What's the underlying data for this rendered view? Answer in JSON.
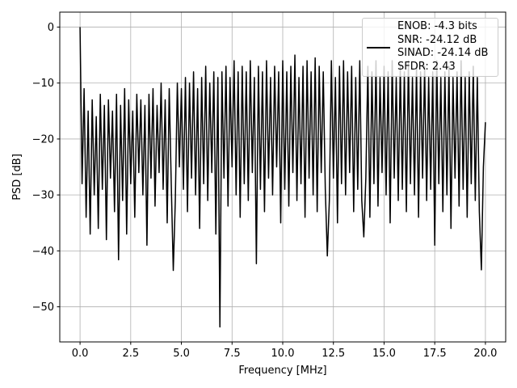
{
  "chart_data": {
    "type": "line",
    "xlabel": "Frequency [MHz]",
    "ylabel": "PSD [dB]",
    "xlim": [
      -1,
      21
    ],
    "ylim": [
      -56.28,
      2.68
    ],
    "xticks": [
      {
        "value": 0,
        "label": "0.0"
      },
      2.5,
      {
        "value": 5,
        "label": "5.0"
      },
      7.5,
      {
        "value": 10,
        "label": "10.0"
      },
      12.5,
      {
        "value": 15,
        "label": "15.0"
      },
      17.5,
      {
        "value": 20,
        "label": "20.0"
      }
    ],
    "yticks": [
      {
        "value": -50,
        "label": "−50"
      },
      {
        "value": -40,
        "label": "−40"
      },
      {
        "value": -30,
        "label": "−30"
      },
      {
        "value": -20,
        "label": "−20"
      },
      {
        "value": -10,
        "label": "−10"
      },
      0
    ],
    "grid": true,
    "legend": "upper right",
    "x": [
      0,
      0.1,
      0.2,
      0.3,
      0.4,
      0.5,
      0.6,
      0.7,
      0.8,
      0.9,
      1,
      1.1,
      1.2,
      1.3,
      1.4,
      1.5,
      1.6,
      1.7,
      1.8,
      1.9,
      2,
      2.1,
      2.2,
      2.3,
      2.4,
      2.5,
      2.6,
      2.7,
      2.8,
      2.9,
      3,
      3.1,
      3.2,
      3.3,
      3.4,
      3.5,
      3.6,
      3.7,
      3.8,
      3.9,
      4,
      4.1,
      4.2,
      4.3,
      4.4,
      4.5,
      4.6,
      4.7,
      4.8,
      4.9,
      5,
      5.1,
      5.2,
      5.3,
      5.4,
      5.5,
      5.6,
      5.7,
      5.8,
      5.9,
      6,
      6.1,
      6.2,
      6.3,
      6.4,
      6.5,
      6.6,
      6.7,
      6.8,
      6.9,
      7,
      7.1,
      7.2,
      7.3,
      7.4,
      7.5,
      7.6,
      7.7,
      7.8,
      7.9,
      8,
      8.1,
      8.2,
      8.3,
      8.4,
      8.5,
      8.6,
      8.7,
      8.8,
      8.9,
      9,
      9.1,
      9.2,
      9.3,
      9.4,
      9.5,
      9.6,
      9.7,
      9.8,
      9.9,
      10,
      10.1,
      10.2,
      10.3,
      10.4,
      10.5,
      10.6,
      10.7,
      10.8,
      10.9,
      11,
      11.1,
      11.2,
      11.3,
      11.4,
      11.5,
      11.6,
      11.7,
      11.8,
      11.9,
      12,
      12.1,
      12.2,
      12.3,
      12.4,
      12.5,
      12.6,
      12.7,
      12.8,
      12.9,
      13,
      13.1,
      13.2,
      13.3,
      13.4,
      13.5,
      13.6,
      13.7,
      13.8,
      13.9,
      14,
      14.1,
      14.2,
      14.3,
      14.4,
      14.5,
      14.6,
      14.7,
      14.8,
      14.9,
      15,
      15.1,
      15.2,
      15.3,
      15.4,
      15.5,
      15.6,
      15.7,
      15.8,
      15.9,
      16,
      16.1,
      16.2,
      16.3,
      16.4,
      16.5,
      16.6,
      16.7,
      16.8,
      16.9,
      17,
      17.1,
      17.2,
      17.3,
      17.4,
      17.5,
      17.6,
      17.7,
      17.8,
      17.9,
      18,
      18.1,
      18.2,
      18.3,
      18.4,
      18.5,
      18.6,
      18.7,
      18.8,
      18.9,
      19,
      19.1,
      19.2,
      19.3,
      19.4,
      19.5,
      19.6,
      19.7,
      19.8,
      19.9,
      20
    ],
    "series": [
      {
        "name": "ENOB: -4.3 bits\nSNR: -24.12 dB\nSINAD: -24.14 dB\nSFDR: 2.43",
        "color": "#000000",
        "values": [
          0,
          -28,
          -11,
          -34,
          -15,
          -37,
          -13,
          -30,
          -16,
          -36,
          -12,
          -29,
          -14,
          -38,
          -13,
          -27,
          -15,
          -33,
          -12,
          -41.6,
          -14,
          -31,
          -11,
          -37,
          -13,
          -28,
          -15,
          -34,
          -12,
          -26,
          -13,
          -30,
          -14,
          -39,
          -12,
          -27,
          -11,
          -32,
          -14,
          -26,
          -10,
          -29,
          -13,
          -35,
          -11,
          -28,
          -43.5,
          -31,
          -10,
          -25,
          -11,
          -29,
          -9,
          -33,
          -10,
          -27,
          -8,
          -30,
          -11,
          -36,
          -9,
          -28,
          -7,
          -31,
          -10,
          -26,
          -8,
          -37,
          -9,
          -53.6,
          -8,
          -27,
          -7,
          -32,
          -9,
          -25,
          -6,
          -30,
          -8,
          -34,
          -7,
          -28,
          -8,
          -31,
          -6,
          -26,
          -9,
          -42.3,
          -7,
          -29,
          -8,
          -33,
          -6,
          -27,
          -9,
          -30,
          -7,
          -25,
          -8,
          -35,
          -6,
          -29,
          -8,
          -32,
          -7,
          -26,
          -5,
          -31,
          -9,
          -28,
          -7,
          -34,
          -6,
          -27,
          -8,
          -30,
          -5.5,
          -33,
          -7,
          -26,
          -8,
          -29,
          -40.9,
          -31,
          -6,
          -27,
          -9,
          -35,
          -7,
          -28,
          -6,
          -30,
          -8,
          -26,
          -7,
          -33,
          -9,
          -29,
          -6,
          -31,
          -37.5,
          -27,
          -7,
          -34,
          -8,
          -28,
          -6,
          -32,
          -9,
          -26,
          -7,
          -30,
          -8,
          -35,
          -6,
          -27,
          -9,
          -31,
          -7,
          -29,
          -8,
          -33,
          -6,
          -28,
          -9,
          -30,
          -7,
          -34,
          -8,
          -27,
          -7,
          -31,
          -9,
          -29,
          -8,
          -39,
          -6,
          -28,
          -9,
          -33,
          -8,
          -30,
          -7,
          -36,
          -9,
          -27,
          -8,
          -32,
          -6,
          -29,
          -9,
          -34,
          -8,
          -28,
          -7,
          -31,
          -9,
          -33,
          -43.4,
          -25,
          -17
        ]
      }
    ]
  }
}
